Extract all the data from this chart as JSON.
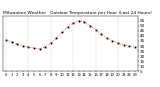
{
  "title": "Milwaukee Weather   Outdoor Temperature per Hour (Last 24 Hours)",
  "hours": [
    0,
    1,
    2,
    3,
    4,
    5,
    6,
    7,
    8,
    9,
    10,
    11,
    12,
    13,
    14,
    15,
    16,
    17,
    18,
    19,
    20,
    21,
    22,
    23
  ],
  "temps": [
    36,
    34,
    32,
    30,
    29,
    28,
    27,
    29,
    33,
    38,
    44,
    49,
    53,
    55,
    54,
    50,
    46,
    42,
    38,
    35,
    33,
    31,
    30,
    29
  ],
  "line_color": "#ff0000",
  "marker_color": "#000000",
  "bg_color": "#ffffff",
  "grid_color": "#aaaaaa",
  "ylim_min": 5,
  "ylim_max": 60,
  "yticks": [
    5,
    10,
    15,
    20,
    25,
    30,
    35,
    40,
    45,
    50,
    55
  ],
  "grid_hours": [
    0,
    4,
    8,
    12,
    16,
    20
  ],
  "title_fontsize": 3.2,
  "tick_fontsize": 3.0,
  "figwidth": 1.6,
  "figheight": 0.87,
  "dpi": 100
}
